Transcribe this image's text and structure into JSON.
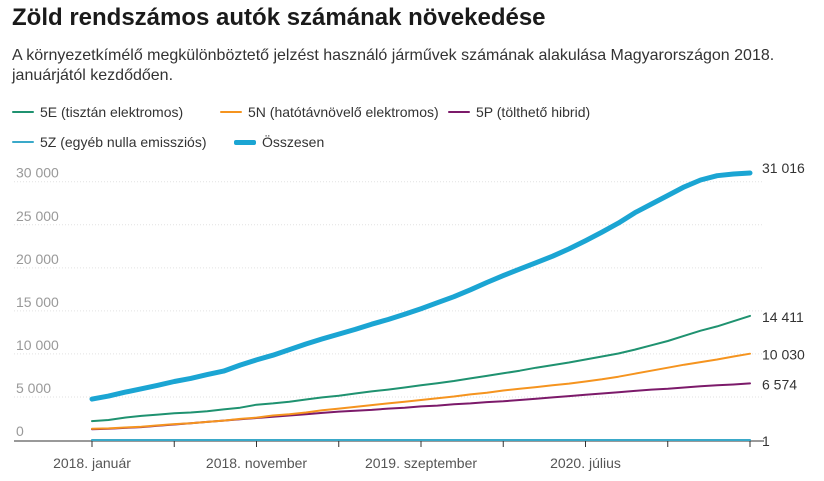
{
  "header": {
    "title": "Zöld rendszámos autók számának növekedése",
    "subtitle": "A környezetkímélő megkülönböztető jelzést használó járművek számának alakulása Magyarországon 2018. januárjától kezdődően."
  },
  "chart_data": {
    "type": "line",
    "title": "Zöld rendszámos autók számának növekedése",
    "xlabel": "",
    "ylabel": "",
    "ylim": [
      0,
      31016
    ],
    "y_ticks": [
      {
        "value": 0,
        "label": "0"
      },
      {
        "value": 5000,
        "label": "5 000"
      },
      {
        "value": 10000,
        "label": "10 000"
      },
      {
        "value": 15000,
        "label": "15 000"
      },
      {
        "value": 20000,
        "label": "20 000"
      },
      {
        "value": 25000,
        "label": "25 000"
      },
      {
        "value": 30000,
        "label": "30 000"
      }
    ],
    "x_ticks": [
      {
        "index": 0,
        "label": "2018. január"
      },
      {
        "index": 10,
        "label": "2018. november"
      },
      {
        "index": 20,
        "label": "2019. szeptember"
      },
      {
        "index": 30,
        "label": "2020. július"
      }
    ],
    "grid": "horizontal",
    "legend_position": "top",
    "x": [
      "2018-01",
      "2018-02",
      "2018-03",
      "2018-04",
      "2018-05",
      "2018-06",
      "2018-07",
      "2018-08",
      "2018-09",
      "2018-10",
      "2018-11",
      "2018-12",
      "2019-01",
      "2019-02",
      "2019-03",
      "2019-04",
      "2019-05",
      "2019-06",
      "2019-07",
      "2019-08",
      "2019-09",
      "2019-10",
      "2019-11",
      "2019-12",
      "2020-01",
      "2020-02",
      "2020-03",
      "2020-04",
      "2020-05",
      "2020-06",
      "2020-07",
      "2020-08",
      "2020-09",
      "2020-10",
      "2020-11",
      "2020-12",
      "2021-01",
      "2021-02",
      "2021-03",
      "2021-04",
      "2021-05"
    ],
    "series": [
      {
        "name": "5E (tisztán elektromos)",
        "color": "#1f9270",
        "values": [
          2200,
          2320,
          2600,
          2800,
          2950,
          3100,
          3200,
          3350,
          3550,
          3750,
          4100,
          4250,
          4450,
          4700,
          4950,
          5150,
          5400,
          5650,
          5850,
          6100,
          6350,
          6600,
          6850,
          7150,
          7450,
          7750,
          8050,
          8400,
          8700,
          9000,
          9350,
          9700,
          10050,
          10500,
          11000,
          11500,
          12100,
          12700,
          13200,
          13800,
          14411
        ]
      },
      {
        "name": "5N (hatótávnövelő elektromos)",
        "color": "#f5941f",
        "values": [
          1300,
          1350,
          1450,
          1550,
          1700,
          1850,
          1950,
          2100,
          2250,
          2450,
          2600,
          2850,
          3000,
          3200,
          3450,
          3650,
          3850,
          4050,
          4250,
          4450,
          4650,
          4850,
          5050,
          5300,
          5500,
          5750,
          5950,
          6150,
          6350,
          6550,
          6800,
          7050,
          7350,
          7700,
          8050,
          8400,
          8750,
          9050,
          9350,
          9700,
          10030
        ]
      },
      {
        "name": "5P (tölthető hibrid)",
        "color": "#7c1a6a",
        "values": [
          1250,
          1300,
          1400,
          1500,
          1650,
          1800,
          1950,
          2100,
          2250,
          2400,
          2550,
          2700,
          2850,
          3000,
          3150,
          3300,
          3400,
          3500,
          3650,
          3750,
          3900,
          4000,
          4150,
          4250,
          4400,
          4500,
          4650,
          4800,
          4950,
          5100,
          5250,
          5400,
          5550,
          5700,
          5850,
          5950,
          6100,
          6250,
          6350,
          6450,
          6574
        ]
      },
      {
        "name": "5Z (egyéb nulla emissziós)",
        "color": "#3aa9c9",
        "values": [
          0,
          0,
          0,
          0,
          0,
          0,
          0,
          0,
          0,
          0,
          0,
          0,
          0,
          0,
          0,
          0,
          0,
          0,
          0,
          0,
          0,
          0,
          0,
          0,
          0,
          0,
          0,
          0,
          0,
          0,
          0,
          0,
          0,
          0,
          0,
          0,
          0,
          0,
          0,
          0,
          1
        ]
      },
      {
        "name": "Összesen",
        "color": "#1ba5d3",
        "values": [
          4750,
          5100,
          5550,
          5950,
          6350,
          6800,
          7150,
          7600,
          8000,
          8700,
          9300,
          9850,
          10500,
          11150,
          11750,
          12300,
          12850,
          13450,
          14000,
          14600,
          15250,
          15950,
          16650,
          17450,
          18300,
          19100,
          19850,
          20600,
          21350,
          22200,
          23150,
          24150,
          25200,
          26400,
          27400,
          28400,
          29400,
          30200,
          30700,
          30900,
          31016
        ]
      }
    ],
    "end_labels": [
      "31 016",
      "14 411",
      "10 030",
      "6 574",
      "1"
    ]
  }
}
